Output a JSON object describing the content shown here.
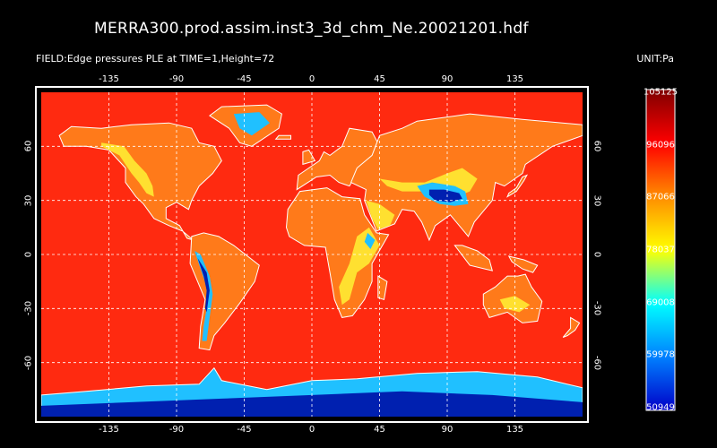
{
  "title": "MERRA300.prod.assim.inst3_3d_chm_Ne.20021201.hdf",
  "field_label": "FIELD:Edge pressures  PLE at TIME=1,Height=72",
  "unit_label": "UNIT:Pa",
  "lon_ticks": [
    "-135",
    "-90",
    "-45",
    "0",
    "45",
    "90",
    "135"
  ],
  "lat_ticks": [
    "60",
    "30",
    "0",
    "-30",
    "-60"
  ],
  "colorbar": {
    "labels": [
      "105125",
      "96096",
      "87066",
      "78037",
      "69008",
      "59978",
      "50949"
    ],
    "colors": [
      "#7f0000",
      "#ff0000",
      "#ff8c00",
      "#ffff00",
      "#00ffff",
      "#0080ff",
      "#0000c8"
    ]
  },
  "map_colors": {
    "ocean": "#ff2a10",
    "land": "#ff7a1a",
    "highland": "#ffe030",
    "mountain": "#20c0ff",
    "plateau": "#0020b0",
    "coast": "#ffffff",
    "grid": "#ffffff"
  }
}
